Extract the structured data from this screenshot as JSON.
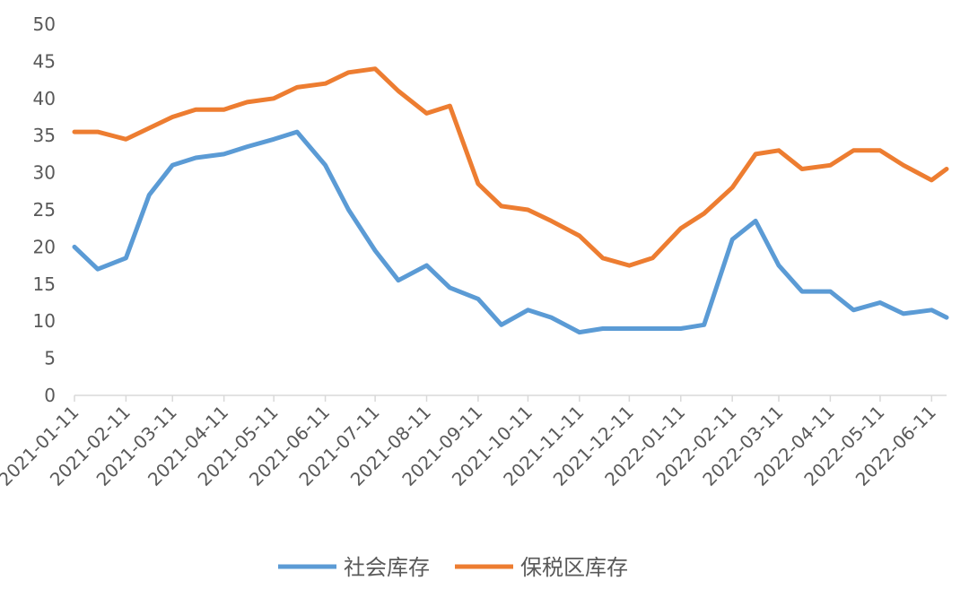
{
  "chart_data": {
    "type": "line",
    "title": "",
    "xlabel": "",
    "ylabel": "",
    "ylim": [
      0,
      50
    ],
    "y_ticks": [
      "0",
      "5",
      "10",
      "15",
      "20",
      "25",
      "30",
      "35",
      "40",
      "45",
      "50"
    ],
    "x_ticks": [
      "2021-01-11",
      "2021-02-11",
      "2021-03-11",
      "2021-04-11",
      "2021-05-11",
      "2021-06-11",
      "2021-07-11",
      "2021-08-11",
      "2021-09-11",
      "2021-10-11",
      "2021-11-11",
      "2021-12-11",
      "2022-01-11",
      "2022-02-11",
      "2022-03-11",
      "2022-04-11",
      "2022-05-11",
      "2022-06-11"
    ],
    "grid": false,
    "legend_position": "bottom",
    "x": [
      "2021-01-11",
      "2021-01-25",
      "2021-02-11",
      "2021-02-25",
      "2021-03-11",
      "2021-03-25",
      "2021-04-11",
      "2021-04-25",
      "2021-05-11",
      "2021-05-25",
      "2021-06-11",
      "2021-06-25",
      "2021-07-11",
      "2021-07-25",
      "2021-08-11",
      "2021-08-25",
      "2021-09-11",
      "2021-09-25",
      "2021-10-11",
      "2021-10-25",
      "2021-11-11",
      "2021-11-25",
      "2021-12-11",
      "2021-12-25",
      "2022-01-11",
      "2022-01-25",
      "2022-02-11",
      "2022-02-25",
      "2022-03-11",
      "2022-03-25",
      "2022-04-11",
      "2022-04-25",
      "2022-05-11",
      "2022-05-25",
      "2022-06-11",
      "2022-06-20"
    ],
    "series": [
      {
        "name": "社会库存",
        "color": "#5B9BD5",
        "values": [
          20.0,
          17.0,
          18.5,
          27.0,
          31.0,
          32.0,
          32.5,
          33.5,
          34.5,
          35.5,
          31.0,
          25.0,
          19.5,
          15.5,
          17.5,
          14.5,
          13.0,
          9.5,
          11.5,
          10.5,
          8.5,
          9.0,
          9.0,
          9.0,
          9.0,
          9.5,
          21.0,
          23.5,
          17.5,
          14.0,
          14.0,
          11.5,
          12.5,
          11.0,
          11.5,
          10.5
        ]
      },
      {
        "name": "保税区库存",
        "color": "#ED7D31",
        "values": [
          35.5,
          35.5,
          34.5,
          36.0,
          37.5,
          38.5,
          38.5,
          39.5,
          40.0,
          41.5,
          42.0,
          43.5,
          44.0,
          41.0,
          38.0,
          39.0,
          28.5,
          25.5,
          25.0,
          23.5,
          21.5,
          18.5,
          17.5,
          18.5,
          22.5,
          24.5,
          28.0,
          32.5,
          33.0,
          30.5,
          31.0,
          33.0,
          33.0,
          31.0,
          29.0,
          30.5
        ]
      }
    ]
  }
}
